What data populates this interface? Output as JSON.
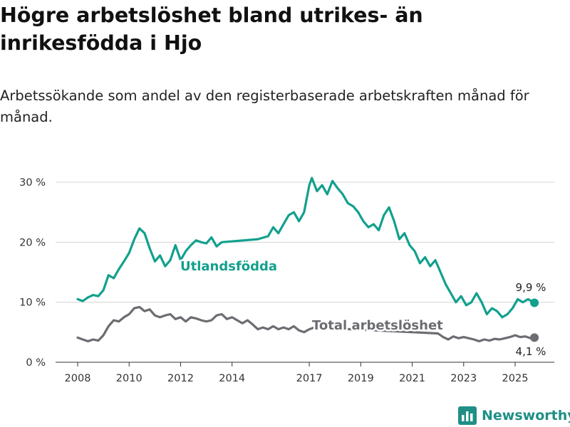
{
  "title": "Högre arbetslöshet bland utrikes- än inrikesfödda i Hjo",
  "subtitle": "Arbetssökande som andel av den registerbaserade arbetskraften månad för månad.",
  "brand": {
    "name": "Newsworthy",
    "color": "#1f8f86",
    "icon": "bar-chart-icon"
  },
  "chart_data": {
    "type": "line",
    "title": "Högre arbetslöshet bland utrikes- än inrikesfödda i Hjo",
    "subtitle": "Arbetssökande som andel av den registerbaserade arbetskraften månad för månad.",
    "x_tick_labels": [
      "2008",
      "2010",
      "2012",
      "2014",
      "2017",
      "2019",
      "2021",
      "2023",
      "2025"
    ],
    "x_ticks": [
      2008.0,
      2010.0,
      2012.0,
      2014.0,
      2017.0,
      2019.0,
      2021.0,
      2023.0,
      2025.0
    ],
    "y_tick_labels": [
      "0 %",
      "10 %",
      "20 %",
      "30 %"
    ],
    "y_ticks": [
      0,
      10,
      20,
      30
    ],
    "ylim": [
      0,
      31
    ],
    "grid": true,
    "series": [
      {
        "name": "Utlandsfödda",
        "color": "#12a08d",
        "end_label": "9,9 %",
        "points": [
          [
            2008.0,
            10.5
          ],
          [
            2008.2,
            10.2
          ],
          [
            2008.4,
            10.8
          ],
          [
            2008.6,
            11.2
          ],
          [
            2008.8,
            11.0
          ],
          [
            2009.0,
            12.0
          ],
          [
            2009.2,
            14.5
          ],
          [
            2009.4,
            14.0
          ],
          [
            2009.6,
            15.5
          ],
          [
            2009.8,
            16.8
          ],
          [
            2010.0,
            18.2
          ],
          [
            2010.2,
            20.5
          ],
          [
            2010.4,
            22.3
          ],
          [
            2010.6,
            21.5
          ],
          [
            2010.8,
            19.0
          ],
          [
            2011.0,
            16.8
          ],
          [
            2011.2,
            17.8
          ],
          [
            2011.4,
            16.0
          ],
          [
            2011.6,
            17.0
          ],
          [
            2011.8,
            19.5
          ],
          [
            2012.0,
            17.0
          ],
          [
            2012.2,
            18.5
          ],
          [
            2012.4,
            19.5
          ],
          [
            2012.6,
            20.3
          ],
          [
            2012.8,
            20.0
          ],
          [
            2013.0,
            19.8
          ],
          [
            2013.2,
            20.8
          ],
          [
            2013.4,
            19.3
          ],
          [
            2013.6,
            20.0
          ],
          [
            2015.0,
            20.5
          ],
          [
            2015.4,
            21.0
          ],
          [
            2015.6,
            22.5
          ],
          [
            2015.8,
            21.5
          ],
          [
            2016.0,
            23.0
          ],
          [
            2016.2,
            24.5
          ],
          [
            2016.4,
            25.0
          ],
          [
            2016.6,
            23.5
          ],
          [
            2016.8,
            25.0
          ],
          [
            2017.0,
            29.5
          ],
          [
            2017.1,
            30.7
          ],
          [
            2017.3,
            28.5
          ],
          [
            2017.5,
            29.5
          ],
          [
            2017.7,
            28.0
          ],
          [
            2017.9,
            30.2
          ],
          [
            2018.1,
            29.0
          ],
          [
            2018.3,
            28.0
          ],
          [
            2018.5,
            26.5
          ],
          [
            2018.7,
            26.0
          ],
          [
            2018.9,
            25.0
          ],
          [
            2019.1,
            23.5
          ],
          [
            2019.3,
            22.5
          ],
          [
            2019.5,
            23.0
          ],
          [
            2019.7,
            22.0
          ],
          [
            2019.9,
            24.5
          ],
          [
            2020.1,
            25.8
          ],
          [
            2020.3,
            23.5
          ],
          [
            2020.5,
            20.5
          ],
          [
            2020.7,
            21.5
          ],
          [
            2020.9,
            19.5
          ],
          [
            2021.1,
            18.5
          ],
          [
            2021.3,
            16.5
          ],
          [
            2021.5,
            17.5
          ],
          [
            2021.7,
            16.0
          ],
          [
            2021.9,
            17.0
          ],
          [
            2022.1,
            15.0
          ],
          [
            2022.3,
            13.0
          ],
          [
            2022.5,
            11.5
          ],
          [
            2022.7,
            10.0
          ],
          [
            2022.9,
            11.0
          ],
          [
            2023.1,
            9.5
          ],
          [
            2023.3,
            10.0
          ],
          [
            2023.5,
            11.5
          ],
          [
            2023.7,
            10.0
          ],
          [
            2023.9,
            8.0
          ],
          [
            2024.1,
            9.0
          ],
          [
            2024.3,
            8.5
          ],
          [
            2024.5,
            7.5
          ],
          [
            2024.7,
            8.0
          ],
          [
            2024.9,
            9.0
          ],
          [
            2025.1,
            10.5
          ],
          [
            2025.3,
            10.0
          ],
          [
            2025.5,
            10.5
          ],
          [
            2025.75,
            9.9
          ]
        ]
      },
      {
        "name": "Total arbetslöshet",
        "color": "#6c6c72",
        "end_label": "4,1 %",
        "points": [
          [
            2008.0,
            4.1
          ],
          [
            2008.2,
            3.8
          ],
          [
            2008.4,
            3.5
          ],
          [
            2008.6,
            3.8
          ],
          [
            2008.8,
            3.6
          ],
          [
            2009.0,
            4.5
          ],
          [
            2009.2,
            6.0
          ],
          [
            2009.4,
            7.0
          ],
          [
            2009.6,
            6.8
          ],
          [
            2009.8,
            7.5
          ],
          [
            2010.0,
            8.0
          ],
          [
            2010.2,
            9.0
          ],
          [
            2010.4,
            9.2
          ],
          [
            2010.6,
            8.5
          ],
          [
            2010.8,
            8.8
          ],
          [
            2011.0,
            7.8
          ],
          [
            2011.2,
            7.5
          ],
          [
            2011.4,
            7.8
          ],
          [
            2011.6,
            8.0
          ],
          [
            2011.8,
            7.2
          ],
          [
            2012.0,
            7.5
          ],
          [
            2012.2,
            6.8
          ],
          [
            2012.4,
            7.5
          ],
          [
            2012.6,
            7.3
          ],
          [
            2012.8,
            7.0
          ],
          [
            2013.0,
            6.8
          ],
          [
            2013.2,
            7.0
          ],
          [
            2013.4,
            7.8
          ],
          [
            2013.6,
            8.0
          ],
          [
            2013.8,
            7.2
          ],
          [
            2014.0,
            7.5
          ],
          [
            2014.2,
            7.0
          ],
          [
            2014.4,
            6.5
          ],
          [
            2014.6,
            7.0
          ],
          [
            2014.8,
            6.3
          ],
          [
            2015.0,
            5.5
          ],
          [
            2015.2,
            5.8
          ],
          [
            2015.4,
            5.5
          ],
          [
            2015.6,
            6.0
          ],
          [
            2015.8,
            5.5
          ],
          [
            2016.0,
            5.8
          ],
          [
            2016.2,
            5.5
          ],
          [
            2016.4,
            6.0
          ],
          [
            2016.6,
            5.3
          ],
          [
            2016.8,
            5.0
          ],
          [
            2017.0,
            5.5
          ],
          [
            2017.2,
            5.8
          ],
          [
            2022.0,
            4.8
          ],
          [
            2022.2,
            4.2
          ],
          [
            2022.4,
            3.8
          ],
          [
            2022.6,
            4.3
          ],
          [
            2022.8,
            4.0
          ],
          [
            2023.0,
            4.2
          ],
          [
            2023.2,
            4.0
          ],
          [
            2023.4,
            3.8
          ],
          [
            2023.6,
            3.5
          ],
          [
            2023.8,
            3.8
          ],
          [
            2024.0,
            3.6
          ],
          [
            2024.2,
            3.9
          ],
          [
            2024.4,
            3.8
          ],
          [
            2024.6,
            4.0
          ],
          [
            2024.8,
            4.2
          ],
          [
            2025.0,
            4.5
          ],
          [
            2025.2,
            4.2
          ],
          [
            2025.4,
            4.3
          ],
          [
            2025.6,
            4.0
          ],
          [
            2025.75,
            4.1
          ]
        ]
      }
    ]
  }
}
